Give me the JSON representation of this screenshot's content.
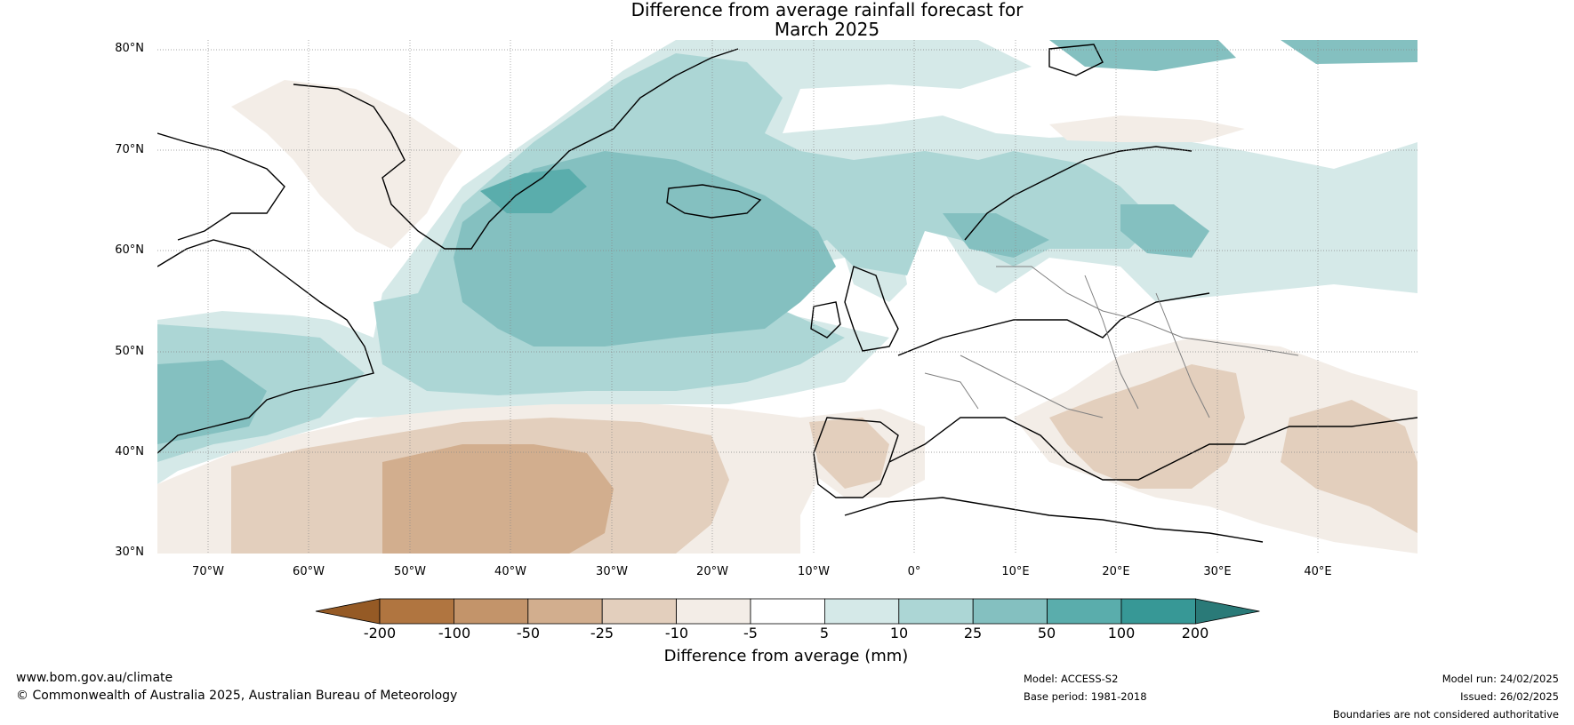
{
  "title": {
    "line1": "Difference from average rainfall forecast for",
    "line2": "March 2025"
  },
  "map": {
    "region": "North Atlantic and Europe",
    "lat_labels": [
      "80°N",
      "70°N",
      "60°N",
      "50°N",
      "40°N",
      "30°N"
    ],
    "lon_labels": [
      "70°W",
      "60°W",
      "50°W",
      "40°W",
      "30°W",
      "20°W",
      "10°W",
      "0°",
      "10°E",
      "20°E",
      "30°E",
      "40°E"
    ],
    "graticule": true
  },
  "colorbar": {
    "ticks": [
      "-200",
      "-100",
      "-50",
      "-25",
      "-10",
      "-5",
      "5",
      "10",
      "25",
      "50",
      "100",
      "200"
    ],
    "colors": [
      "#955a25",
      "#b07540",
      "#c3946a",
      "#d2ae8e",
      "#e3cfbd",
      "#f3ede7",
      "#ffffff",
      "#d5e9e8",
      "#acd6d5",
      "#84c0c0",
      "#5aadac",
      "#379896",
      "#2a7a78"
    ],
    "label": "Difference from average (mm)"
  },
  "footer": {
    "website": "www.bom.gov.au/climate",
    "copyright": "© Commonwealth of Australia 2025, Australian Bureau of Meteorology",
    "model": "Model: ACCESS-S2",
    "base_period": "Base period: 1981-2018",
    "model_run": "Model run: 24/02/2025",
    "issued": "Issued: 26/02/2025",
    "disclaimer": "Boundaries are not considered authoritative"
  }
}
